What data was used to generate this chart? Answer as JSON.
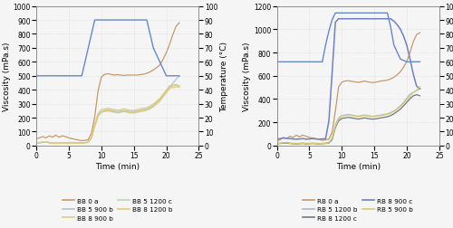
{
  "left_plot": {
    "ylabel_left": "Viscosity (mPa.s)",
    "ylabel_right": "Temperature (°C)",
    "xlabel": "Time (min)",
    "xlim": [
      0,
      25
    ],
    "ylim_left": [
      0,
      1000
    ],
    "ylim_right": [
      0,
      100
    ],
    "yticks_left": [
      0,
      100,
      200,
      300,
      400,
      500,
      600,
      700,
      800,
      900,
      1000
    ],
    "yticks_right": [
      0,
      10,
      20,
      30,
      40,
      50,
      60,
      70,
      80,
      90,
      100
    ],
    "xticks": [
      0,
      5,
      10,
      15,
      20,
      25
    ],
    "series": {
      "BB 0 a": {
        "color": "#c49a6c",
        "linewidth": 0.9,
        "time": [
          0,
          0.5,
          1,
          1.5,
          2,
          2.5,
          3,
          3.5,
          4,
          4.5,
          5,
          5.5,
          6,
          6.5,
          7,
          7.5,
          8,
          8.5,
          9,
          9.5,
          10,
          10.5,
          11,
          11.5,
          12,
          12.5,
          13,
          13.5,
          14,
          14.5,
          15,
          15.5,
          16,
          16.5,
          17,
          17.5,
          18,
          18.5,
          19,
          19.5,
          20,
          20.5,
          21,
          21.5,
          22
        ],
        "viscosity": [
          50,
          55,
          65,
          55,
          70,
          60,
          75,
          60,
          70,
          65,
          55,
          50,
          45,
          40,
          35,
          38,
          42,
          90,
          210,
          390,
          490,
          510,
          515,
          510,
          505,
          508,
          505,
          502,
          505,
          505,
          505,
          505,
          508,
          512,
          518,
          528,
          542,
          558,
          578,
          618,
          665,
          725,
          795,
          855,
          880
        ]
      },
      "BB 5 900 b": {
        "color": "#aec6d8",
        "linewidth": 0.9,
        "time": [
          0,
          0.5,
          1,
          1.5,
          2,
          2.5,
          3,
          3.5,
          4,
          4.5,
          5,
          5.5,
          6,
          6.5,
          7,
          7.5,
          8,
          8.5,
          9,
          9.5,
          10,
          10.5,
          11,
          11.5,
          12,
          12.5,
          13,
          13.5,
          14,
          14.5,
          15,
          15.5,
          16,
          16.5,
          17,
          17.5,
          18,
          18.5,
          19,
          19.5,
          20,
          20.5,
          21,
          21.5,
          22
        ],
        "viscosity": [
          20,
          22,
          25,
          28,
          22,
          20,
          18,
          20,
          22,
          18,
          20,
          22,
          20,
          18,
          20,
          22,
          25,
          60,
          145,
          215,
          245,
          252,
          258,
          252,
          248,
          243,
          248,
          252,
          248,
          243,
          243,
          248,
          252,
          258,
          263,
          273,
          288,
          308,
          328,
          358,
          388,
          418,
          445,
          475,
          498
        ]
      },
      "BB 8 900 b": {
        "color": "#d8cc8e",
        "linewidth": 0.9,
        "time": [
          0,
          0.5,
          1,
          1.5,
          2,
          2.5,
          3,
          3.5,
          4,
          4.5,
          5,
          5.5,
          6,
          6.5,
          7,
          7.5,
          8,
          8.5,
          9,
          9.5,
          10,
          10.5,
          11,
          11.5,
          12,
          12.5,
          13,
          13.5,
          14,
          14.5,
          15,
          15.5,
          16,
          16.5,
          17,
          17.5,
          18,
          18.5,
          19,
          19.5,
          20,
          20.5,
          21,
          21.5,
          22
        ],
        "viscosity": [
          20,
          22,
          25,
          28,
          22,
          20,
          18,
          20,
          22,
          18,
          20,
          22,
          20,
          18,
          20,
          22,
          25,
          60,
          158,
          228,
          258,
          263,
          268,
          263,
          258,
          253,
          258,
          263,
          258,
          253,
          253,
          258,
          263,
          268,
          273,
          283,
          298,
          318,
          338,
          368,
          398,
          428,
          413,
          422,
          418
        ]
      },
      "BB 5 1200 c": {
        "color": "#c0d8b0",
        "linewidth": 0.9,
        "time": [
          0,
          0.5,
          1,
          1.5,
          2,
          2.5,
          3,
          3.5,
          4,
          4.5,
          5,
          5.5,
          6,
          6.5,
          7,
          7.5,
          8,
          8.5,
          9,
          9.5,
          10,
          10.5,
          11,
          11.5,
          12,
          12.5,
          13,
          13.5,
          14,
          14.5,
          15,
          15.5,
          16,
          16.5,
          17,
          17.5,
          18,
          18.5,
          19,
          19.5,
          20,
          20.5,
          21,
          21.5,
          22
        ],
        "viscosity": [
          18,
          20,
          23,
          26,
          20,
          18,
          16,
          18,
          20,
          16,
          18,
          20,
          18,
          16,
          18,
          20,
          23,
          55,
          138,
          208,
          238,
          243,
          248,
          243,
          238,
          233,
          238,
          243,
          238,
          233,
          233,
          238,
          243,
          248,
          253,
          263,
          278,
          298,
          318,
          348,
          378,
          408,
          428,
          432,
          422
        ]
      },
      "BB 8 1200 b": {
        "color": "#e8c870",
        "linewidth": 0.9,
        "time": [
          0,
          0.5,
          1,
          1.5,
          2,
          2.5,
          3,
          3.5,
          4,
          4.5,
          5,
          5.5,
          6,
          6.5,
          7,
          7.5,
          8,
          8.5,
          9,
          9.5,
          10,
          10.5,
          11,
          11.5,
          12,
          12.5,
          13,
          13.5,
          14,
          14.5,
          15,
          15.5,
          16,
          16.5,
          17,
          17.5,
          18,
          18.5,
          19,
          19.5,
          20,
          20.5,
          21,
          21.5,
          22
        ],
        "viscosity": [
          18,
          20,
          23,
          26,
          20,
          18,
          16,
          18,
          20,
          16,
          18,
          20,
          18,
          16,
          18,
          20,
          23,
          55,
          143,
          213,
          243,
          248,
          253,
          248,
          243,
          238,
          243,
          248,
          243,
          238,
          238,
          243,
          248,
          253,
          258,
          268,
          283,
          303,
          323,
          353,
          383,
          413,
          432,
          438,
          428
        ]
      }
    },
    "temperature": {
      "color": "#6888c8",
      "linewidth": 1.0,
      "time": [
        0,
        0.5,
        1,
        2,
        3,
        4,
        5,
        6,
        7,
        7.5,
        8,
        8.5,
        9,
        10,
        11,
        12,
        13,
        14,
        15,
        16,
        17,
        17.5,
        18,
        19,
        20,
        20.5,
        21,
        21.5,
        22
      ],
      "temp": [
        50,
        50,
        50,
        50,
        50,
        50,
        50,
        50,
        50,
        60,
        70,
        80,
        90,
        90,
        90,
        90,
        90,
        90,
        90,
        90,
        90,
        80,
        70,
        60,
        50,
        50,
        50,
        50,
        50
      ]
    },
    "legend": [
      {
        "label": "BB 0 a",
        "color": "#c49a6c"
      },
      {
        "label": "BB 5 900 b",
        "color": "#aec6d8"
      },
      {
        "label": "BB 8 900 b",
        "color": "#d8cc8e"
      },
      {
        "label": "BB 5 1200 c",
        "color": "#c0d8b0"
      },
      {
        "label": "BB 8 1200 b",
        "color": "#e8c870"
      }
    ]
  },
  "right_plot": {
    "ylabel_left": "Viscosity (mPa.s)",
    "ylabel_right": "Temperature (°C)",
    "xlabel": "Time (min)",
    "xlim": [
      0,
      25
    ],
    "ylim_left": [
      0,
      1200
    ],
    "ylim_right": [
      0,
      100
    ],
    "yticks_left": [
      0,
      200,
      400,
      600,
      800,
      1000,
      1200
    ],
    "yticks_right": [
      0,
      10,
      20,
      30,
      40,
      50,
      60,
      70,
      80,
      90,
      100
    ],
    "xticks": [
      0,
      5,
      10,
      15,
      20,
      25
    ],
    "series": {
      "RB 0 a": {
        "color": "#c49a6c",
        "linewidth": 0.9,
        "time": [
          0,
          0.5,
          1,
          1.5,
          2,
          2.5,
          3,
          3.5,
          4,
          4.5,
          5,
          5.5,
          6,
          6.5,
          7,
          7.5,
          8,
          8.5,
          9,
          9.5,
          10,
          10.5,
          11,
          11.5,
          12,
          12.5,
          13,
          13.5,
          14,
          14.5,
          15,
          15.5,
          16,
          16.5,
          17,
          17.5,
          18,
          18.5,
          19,
          19.5,
          20,
          20.5,
          21,
          21.5,
          22
        ],
        "viscosity": [
          40,
          50,
          70,
          60,
          80,
          70,
          90,
          75,
          90,
          80,
          70,
          65,
          60,
          55,
          45,
          50,
          55,
          115,
          295,
          505,
          545,
          555,
          558,
          552,
          548,
          543,
          548,
          555,
          548,
          543,
          543,
          548,
          555,
          558,
          563,
          573,
          588,
          608,
          635,
          675,
          725,
          805,
          895,
          955,
          970
        ]
      },
      "RB 5 1200 b": {
        "color": "#b0b8d0",
        "linewidth": 0.9,
        "time": [
          0,
          0.5,
          1,
          1.5,
          2,
          2.5,
          3,
          3.5,
          4,
          4.5,
          5,
          5.5,
          6,
          6.5,
          7,
          7.5,
          8,
          8.5,
          9,
          9.5,
          10,
          10.5,
          11,
          11.5,
          12,
          12.5,
          13,
          13.5,
          14,
          14.5,
          15,
          15.5,
          16,
          16.5,
          17,
          17.5,
          18,
          18.5,
          19,
          19.5,
          20,
          20.5,
          21,
          21.5,
          22
        ],
        "viscosity": [
          20,
          22,
          25,
          28,
          22,
          20,
          18,
          20,
          22,
          18,
          20,
          22,
          20,
          18,
          20,
          22,
          25,
          65,
          178,
          238,
          258,
          263,
          268,
          263,
          258,
          253,
          258,
          263,
          258,
          253,
          253,
          258,
          263,
          268,
          273,
          283,
          298,
          318,
          343,
          373,
          408,
          443,
          458,
          472,
          488
        ]
      },
      "RB 8 1200 c": {
        "color": "#707880",
        "linewidth": 0.9,
        "time": [
          0,
          0.5,
          1,
          1.5,
          2,
          2.5,
          3,
          3.5,
          4,
          4.5,
          5,
          5.5,
          6,
          6.5,
          7,
          7.5,
          8,
          8.5,
          9,
          9.5,
          10,
          10.5,
          11,
          11.5,
          12,
          12.5,
          13,
          13.5,
          14,
          14.5,
          15,
          15.5,
          16,
          16.5,
          17,
          17.5,
          18,
          18.5,
          19,
          19.5,
          20,
          20.5,
          21,
          21.5,
          22
        ],
        "viscosity": [
          15,
          18,
          20,
          22,
          18,
          16,
          14,
          16,
          18,
          14,
          16,
          18,
          16,
          14,
          16,
          18,
          22,
          50,
          153,
          213,
          233,
          238,
          243,
          238,
          233,
          228,
          233,
          238,
          233,
          228,
          228,
          233,
          238,
          243,
          248,
          258,
          273,
          293,
          313,
          343,
          373,
          403,
          428,
          438,
          428
        ]
      },
      "RB 8 900 c": {
        "color": "#7080c0",
        "linewidth": 1.1,
        "time": [
          0,
          0.5,
          1,
          1.5,
          2,
          2.5,
          3,
          3.5,
          4,
          4.5,
          5,
          5.5,
          6,
          6.5,
          7,
          7.5,
          8,
          8.5,
          9,
          9.5,
          10,
          10.5,
          11,
          11.5,
          12,
          12.5,
          13,
          13.5,
          14,
          14.5,
          15,
          15.5,
          16,
          16.5,
          17,
          17.5,
          18,
          18.5,
          19,
          19.5,
          20,
          20.5,
          21,
          21.5,
          22
        ],
        "viscosity": [
          55,
          60,
          65,
          63,
          60,
          57,
          55,
          57,
          60,
          55,
          57,
          60,
          57,
          55,
          57,
          60,
          210,
          620,
          1060,
          1090,
          1090,
          1090,
          1090,
          1090,
          1090,
          1090,
          1090,
          1090,
          1090,
          1090,
          1090,
          1090,
          1090,
          1090,
          1090,
          1090,
          1070,
          1040,
          1000,
          940,
          860,
          740,
          610,
          510,
          490
        ]
      },
      "RB 5 900 b": {
        "color": "#d8cc70",
        "linewidth": 0.9,
        "time": [
          0,
          0.5,
          1,
          1.5,
          2,
          2.5,
          3,
          3.5,
          4,
          4.5,
          5,
          5.5,
          6,
          6.5,
          7,
          7.5,
          8,
          8.5,
          9,
          9.5,
          10,
          10.5,
          11,
          11.5,
          12,
          12.5,
          13,
          13.5,
          14,
          14.5,
          15,
          15.5,
          16,
          16.5,
          17,
          17.5,
          18,
          18.5,
          19,
          19.5,
          20,
          20.5,
          21,
          21.5,
          22
        ],
        "viscosity": [
          18,
          20,
          23,
          26,
          20,
          18,
          16,
          18,
          20,
          16,
          18,
          20,
          18,
          16,
          18,
          20,
          23,
          60,
          163,
          228,
          253,
          258,
          263,
          258,
          253,
          248,
          253,
          258,
          253,
          248,
          248,
          253,
          258,
          263,
          268,
          278,
          293,
          313,
          333,
          363,
          393,
          423,
          458,
          478,
          508
        ]
      }
    },
    "temperature": {
      "color": "#6888c8",
      "linewidth": 1.0,
      "time": [
        0,
        0.5,
        1,
        2,
        3,
        4,
        5,
        6,
        7,
        7.5,
        8,
        8.5,
        9,
        10,
        11,
        12,
        13,
        14,
        15,
        16,
        17,
        17.5,
        18,
        19,
        20,
        20.5,
        21,
        21.5,
        22
      ],
      "temp": [
        60,
        60,
        60,
        60,
        60,
        60,
        60,
        60,
        60,
        72,
        82,
        90,
        95,
        95,
        95,
        95,
        95,
        95,
        95,
        95,
        95,
        85,
        72,
        62,
        60,
        60,
        60,
        60,
        60
      ]
    },
    "legend": [
      {
        "label": "RB 0 a",
        "color": "#c49a6c"
      },
      {
        "label": "RB 5 1200 b",
        "color": "#b0b8d0"
      },
      {
        "label": "RB 8 1200 c",
        "color": "#707880"
      },
      {
        "label": "RB 8 900 c",
        "color": "#7080c0"
      },
      {
        "label": "RB 5 900 b",
        "color": "#d8cc70"
      }
    ]
  },
  "grid_color": "#cccccc",
  "grid_linestyle": ":",
  "background_color": "#f5f5f5",
  "tick_fontsize": 5.5,
  "label_fontsize": 6.5,
  "legend_fontsize": 5.2
}
